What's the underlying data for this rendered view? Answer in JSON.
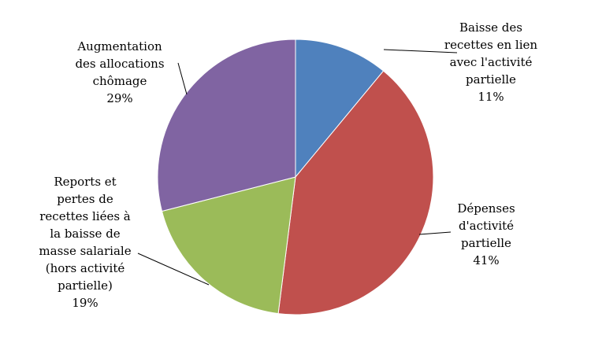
{
  "chart_data": {
    "type": "pie",
    "title": "",
    "legend": "none",
    "start_angle_deg": 0,
    "direction": "clockwise",
    "slices": [
      {
        "label_lines": [
          "Baisse des",
          "recettes en lien",
          "avec l'activité",
          "partielle"
        ],
        "percent_label": "11%",
        "value": 11,
        "color": "#4F81BD"
      },
      {
        "label_lines": [
          "Dépenses",
          "d'activité",
          "partielle"
        ],
        "percent_label": "41%",
        "value": 41,
        "color": "#C0504D"
      },
      {
        "label_lines": [
          "Reports et",
          "pertes de",
          "recettes liées à",
          "la baisse de",
          "masse salariale",
          "(hors activité",
          "partielle)"
        ],
        "percent_label": "19%",
        "value": 19,
        "color": "#9BBB59"
      },
      {
        "label_lines": [
          "Augmentation",
          "des allocations",
          "chômage"
        ],
        "percent_label": "29%",
        "value": 29,
        "color": "#8064A2"
      }
    ]
  }
}
